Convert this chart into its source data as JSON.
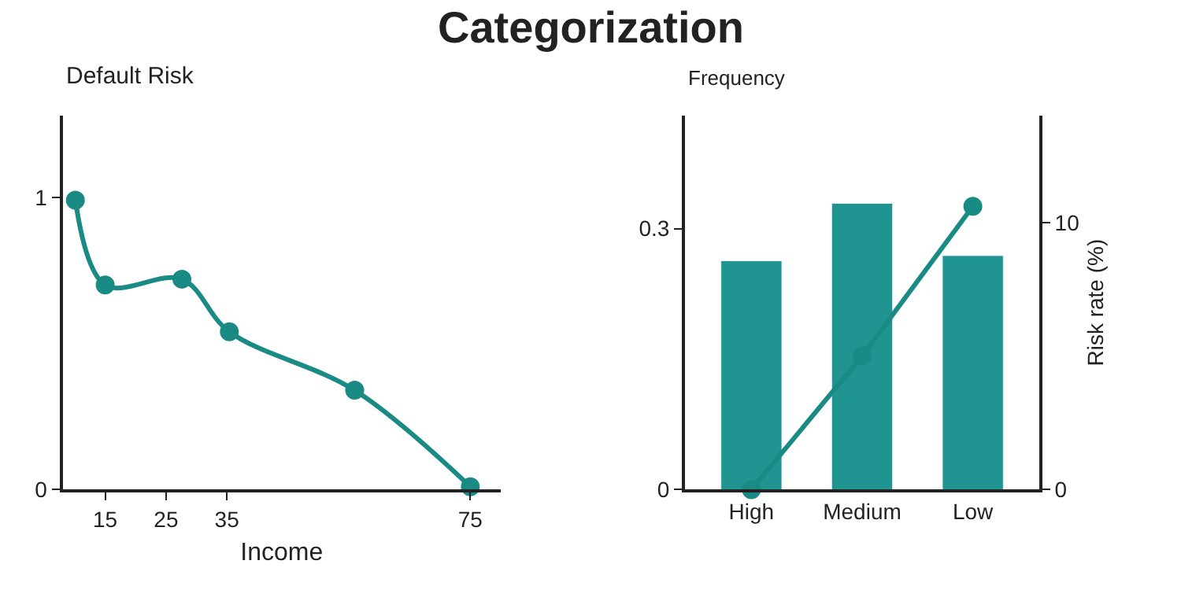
{
  "chart_data": [
    {
      "type": "line",
      "title": "Categorization",
      "xlabel": "Income",
      "ylabel": "Default Risk",
      "x": [
        10.1,
        15,
        27.6,
        35.4,
        56,
        75
      ],
      "values": [
        0.99,
        0.7,
        0.72,
        0.54,
        0.34,
        0.01
      ],
      "color": "#1a8a84",
      "marker": "circle",
      "line_style": "solid",
      "xlim": [
        8,
        80
      ],
      "ylim": [
        0,
        1.28
      ],
      "xticks": [
        15,
        25,
        35,
        75
      ],
      "yticks": [
        0,
        1
      ]
    },
    {
      "type": "bar",
      "categories": [
        "High",
        "Medium",
        "Low"
      ],
      "ylabel": "Frequency",
      "y2label": "Risk rate (%)",
      "ylim": [
        0,
        0.43
      ],
      "yticks": [
        0,
        0.3
      ],
      "y2lim": [
        0,
        14
      ],
      "y2ticks": [
        0,
        10
      ],
      "marker": "circle",
      "series": [
        {
          "color": "#1f9490",
          "values": [
            0.263,
            0.329,
            0.269
          ]
        },
        {
          "type": "line",
          "axis": "y2",
          "color": "#1a8a84",
          "values": [
            0,
            5,
            10.6
          ]
        }
      ]
    }
  ]
}
